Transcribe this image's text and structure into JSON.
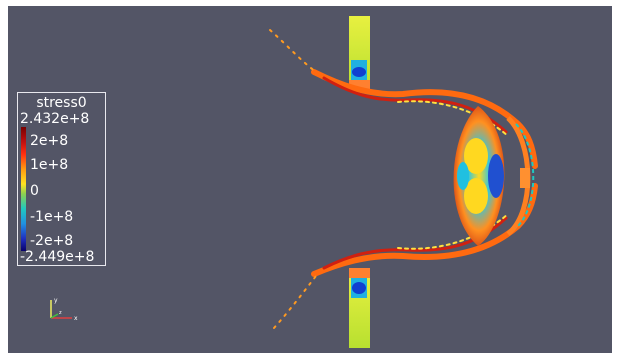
{
  "legend": {
    "title": "stress0",
    "max_label": "2.432e+8",
    "tick_labels": [
      "2e+8",
      "1e+8",
      "0",
      "-1e+8",
      "-2e+8"
    ],
    "min_label": "-2.449e+8"
  },
  "orientation_axes": {
    "x_label": "x",
    "y_label": "y",
    "z_label": "z"
  },
  "colors": {
    "background": "#535566",
    "colormap": [
      "#08006a",
      "#2090e0",
      "#20c8c0",
      "#8dd050",
      "#ffe020",
      "#ff9a10",
      "#ff3010",
      "#7a0000"
    ]
  }
}
